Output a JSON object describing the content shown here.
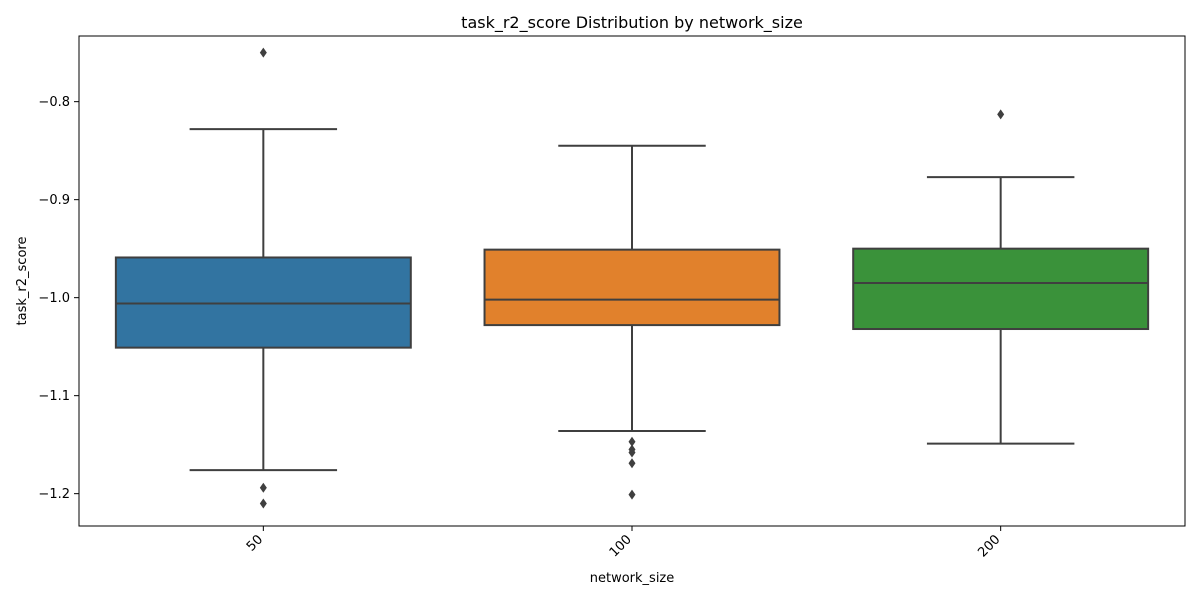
{
  "chart_data": {
    "type": "boxplot",
    "title": "task_r2_score Distribution by network_size",
    "xlabel": "network_size",
    "ylabel": "task_r2_score",
    "ylim": [
      -1.233,
      -0.733
    ],
    "yticks": [
      -1.2,
      -1.1,
      -1.0,
      -0.9,
      -0.8
    ],
    "ytick_labels": [
      "−1.2",
      "−1.1",
      "−1.0",
      "−0.9",
      "−0.8"
    ],
    "grid": false,
    "categories": [
      "50",
      "100",
      "200"
    ],
    "boxes": [
      {
        "category": "50",
        "color": "#3274a1",
        "q1": -1.051,
        "median": -1.006,
        "q3": -0.959,
        "whisker_low": -1.176,
        "whisker_high": -0.828,
        "fliers": [
          -0.75,
          -1.194,
          -1.21
        ]
      },
      {
        "category": "100",
        "color": "#e1812c",
        "q1": -1.028,
        "median": -1.002,
        "q3": -0.951,
        "whisker_low": -1.136,
        "whisker_high": -0.845,
        "fliers": [
          -1.147,
          -1.155,
          -1.158,
          -1.169,
          -1.201
        ]
      },
      {
        "category": "200",
        "color": "#3a923a",
        "q1": -1.032,
        "median": -0.985,
        "q3": -0.95,
        "whisker_low": -1.149,
        "whisker_high": -0.877,
        "fliers": [
          -0.813
        ]
      }
    ]
  }
}
